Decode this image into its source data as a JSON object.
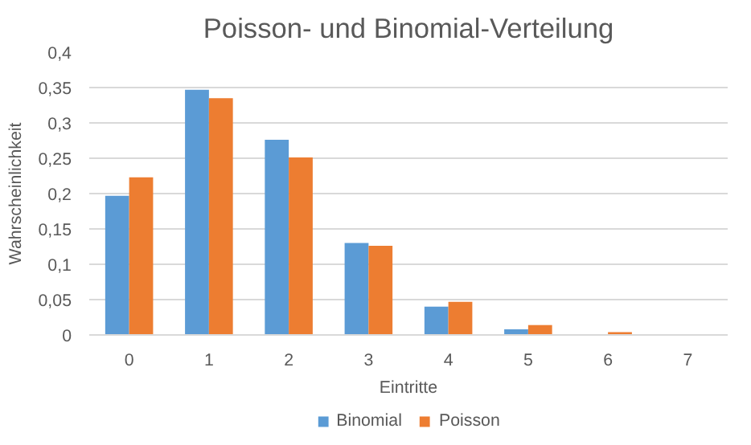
{
  "chart_data": {
    "type": "bar",
    "title": "Poisson- und Binomial-Verteilung",
    "xlabel": "Eintritte",
    "ylabel": "Wahrscheinlichkeit",
    "categories": [
      "0",
      "1",
      "2",
      "3",
      "4",
      "5",
      "6",
      "7"
    ],
    "series": [
      {
        "name": "Binomial",
        "color": "#5b9bd5",
        "values": [
          0.197,
          0.347,
          0.276,
          0.13,
          0.04,
          0.008,
          0,
          0
        ]
      },
      {
        "name": "Poisson",
        "color": "#ed7d31",
        "values": [
          0.223,
          0.335,
          0.251,
          0.126,
          0.047,
          0.014,
          0.004,
          0
        ]
      }
    ],
    "ylim": [
      0,
      0.4
    ],
    "yticks": [
      0,
      {
        "value": 0.05,
        "label": "0,05"
      },
      {
        "value": 0.1,
        "label": "0,1"
      },
      {
        "value": 0.15,
        "label": "0,15"
      },
      {
        "value": 0.2,
        "label": "0,2"
      },
      {
        "value": 0.25,
        "label": "0,25"
      },
      {
        "value": 0.3,
        "label": "0,3"
      },
      {
        "value": 0.35,
        "label": "0,35"
      },
      {
        "value": 0.4,
        "label": "0,4"
      }
    ],
    "grid": "y",
    "legend": "bottom"
  }
}
